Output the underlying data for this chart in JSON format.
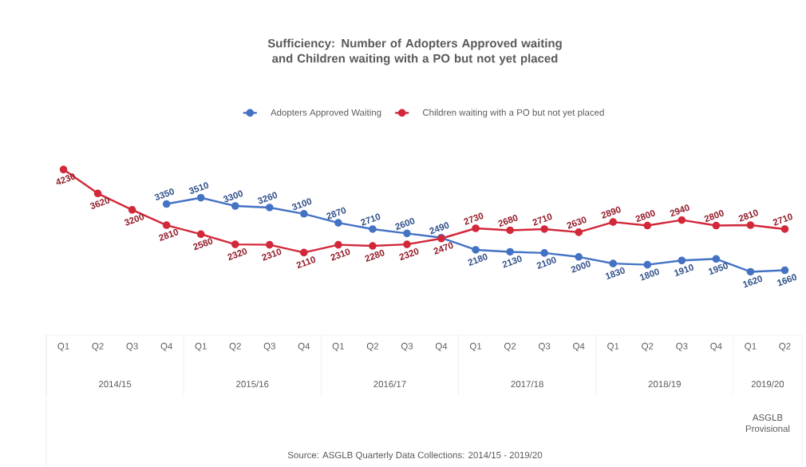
{
  "chart_data": {
    "type": "line",
    "title": "Sufficiency: Number of Adopters Approved waiting and Children waiting with a PO but not yet placed",
    "categories": [
      "Q1",
      "Q2",
      "Q3",
      "Q4",
      "Q1",
      "Q2",
      "Q3",
      "Q4",
      "Q1",
      "Q2",
      "Q3",
      "Q4",
      "Q1",
      "Q2",
      "Q3",
      "Q4",
      "Q1",
      "Q2",
      "Q3",
      "Q4",
      "Q1",
      "Q2"
    ],
    "series": [
      {
        "name": "Adopters Approved Waiting",
        "color": "#4472c4",
        "values": [
          null,
          null,
          null,
          3350,
          3510,
          3300,
          3260,
          3100,
          2870,
          2710,
          2600,
          2490,
          2180,
          2130,
          2100,
          2000,
          1830,
          1800,
          1910,
          1950,
          1620,
          1660
        ]
      },
      {
        "name": "Children waiting with a PO but not yet placed",
        "color": "#d2283a",
        "values": [
          4230,
          3620,
          3200,
          2810,
          2580,
          2320,
          2310,
          2110,
          2310,
          2280,
          2320,
          2470,
          2730,
          2680,
          2710,
          2630,
          2890,
          2800,
          2940,
          2800,
          2810,
          2710
        ]
      }
    ],
    "annotations": [
      "2014/15",
      "2015/16",
      "2016/17",
      "2017/18",
      "2018/19",
      "2019/20",
      "ASGLB Provisional",
      "Source: ASGLB Quarterly Data Collections: 2014/15 - 2019/20"
    ],
    "data_labels": true,
    "marker": "circle",
    "legend": "top"
  }
}
